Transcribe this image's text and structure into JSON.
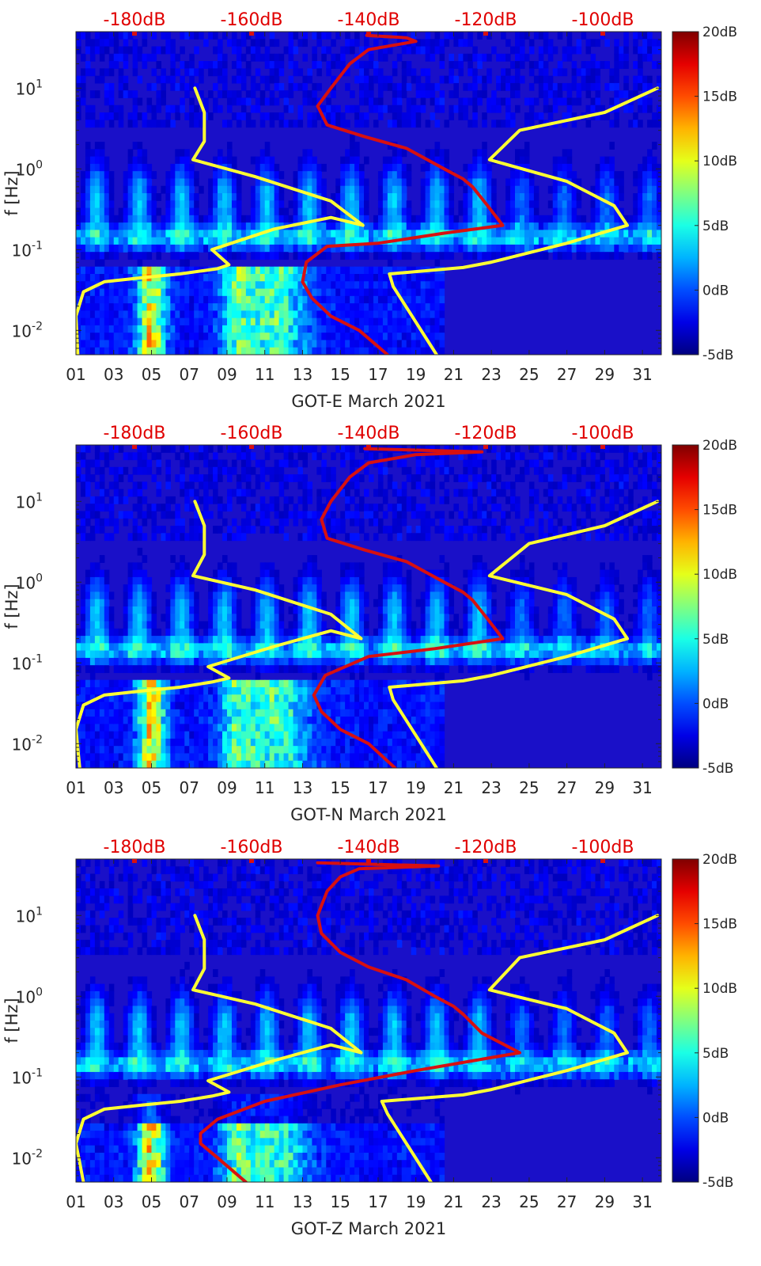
{
  "colors": {
    "yellow_curve": "#ffff33",
    "red_curve": "#d81010",
    "top_label": "#e00000",
    "background": "#1a10c8"
  },
  "colorbar": {
    "colormap": "jet",
    "min": -5,
    "max": 20,
    "labels": [
      "20dB",
      "15dB",
      "10dB",
      "5dB",
      "0dB",
      "-5dB"
    ]
  },
  "chart_data": [
    {
      "type": "heatmap",
      "xlabel": "GOT-E March 2021",
      "ylabel": "f [Hz]",
      "x_ticks": [
        "01",
        "03",
        "05",
        "07",
        "09",
        "11",
        "13",
        "15",
        "17",
        "19",
        "21",
        "23",
        "25",
        "27",
        "29",
        "31"
      ],
      "y_ticks": [
        "10^{-2}",
        "10^{-1}",
        "10^{0}",
        "10^{1}"
      ],
      "xlim": [
        1,
        32
      ],
      "ylim": [
        0.005,
        50
      ],
      "yscale": "log",
      "top_axis_labels": [
        "-180dB",
        "-160dB",
        "-140dB",
        "-120dB",
        "-100dB"
      ],
      "top_axis_range_db": [
        -190,
        -90
      ],
      "series": [
        {
          "name": "",
          "color": "yellow",
          "x": [
            1.1,
            1.0,
            1.4,
            2.5,
            4.5,
            6.5,
            8.5,
            9.1,
            8.2,
            11.5,
            14.5,
            16.2,
            14.5,
            10.5,
            7.2,
            7.8,
            7.8,
            7.3
          ],
          "y": [
            0.005,
            0.015,
            0.03,
            0.04,
            0.045,
            0.05,
            0.058,
            0.065,
            0.1,
            0.18,
            0.25,
            0.2,
            0.4,
            0.8,
            1.3,
            2.2,
            5,
            10
          ]
        },
        {
          "name": "",
          "color": "yellow",
          "x": [
            20.1,
            17.8,
            17.6,
            21.5,
            23,
            27,
            30.2,
            29.5,
            27,
            22.9,
            24.5,
            29,
            31.8
          ],
          "y": [
            0.005,
            0.035,
            0.05,
            0.06,
            0.07,
            0.12,
            0.2,
            0.35,
            0.7,
            1.3,
            3,
            5,
            10
          ]
        },
        {
          "name": "",
          "color": "red",
          "x": [
            17.5,
            16,
            14.5,
            13.5,
            13,
            13.2,
            14.3,
            17,
            20.5,
            23.6,
            22.8,
            22,
            21.5,
            20.5,
            18.5,
            16.3,
            14.3,
            13.8,
            14.5,
            15.5,
            16.5,
            19,
            18.5,
            16.4
          ],
          "y": [
            0.005,
            0.01,
            0.015,
            0.025,
            0.04,
            0.07,
            0.11,
            0.12,
            0.16,
            0.2,
            0.35,
            0.6,
            0.75,
            1,
            1.8,
            2.5,
            3.5,
            6,
            10,
            20,
            30,
            38,
            42,
            45
          ]
        }
      ]
    },
    {
      "type": "heatmap",
      "xlabel": "GOT-N March 2021",
      "ylabel": "f [Hz]",
      "x_ticks": [
        "01",
        "03",
        "05",
        "07",
        "09",
        "11",
        "13",
        "15",
        "17",
        "19",
        "21",
        "23",
        "25",
        "27",
        "29",
        "31"
      ],
      "y_ticks": [
        "10^{-2}",
        "10^{-1}",
        "10^{0}",
        "10^{1}"
      ],
      "xlim": [
        1,
        32
      ],
      "ylim": [
        0.005,
        50
      ],
      "yscale": "log",
      "top_axis_labels": [
        "-180dB",
        "-160dB",
        "-140dB",
        "-120dB",
        "-100dB"
      ],
      "top_axis_range_db": [
        -190,
        -90
      ],
      "series": [
        {
          "name": "",
          "color": "yellow",
          "x": [
            1.2,
            1.0,
            1.4,
            2.5,
            4.5,
            6.5,
            8.2,
            9.1,
            8.0,
            11.5,
            14.5,
            16.1,
            14.5,
            10.5,
            7.2,
            7.8,
            7.8,
            7.3
          ],
          "y": [
            0.005,
            0.015,
            0.03,
            0.04,
            0.045,
            0.05,
            0.058,
            0.065,
            0.09,
            0.16,
            0.25,
            0.2,
            0.4,
            0.8,
            1.2,
            2.2,
            5,
            10
          ]
        },
        {
          "name": "",
          "color": "yellow",
          "x": [
            20.1,
            17.8,
            17.6,
            21.5,
            23,
            27,
            30.2,
            29.5,
            27,
            22.9,
            25,
            29,
            31.8
          ],
          "y": [
            0.005,
            0.035,
            0.05,
            0.06,
            0.07,
            0.12,
            0.2,
            0.35,
            0.7,
            1.2,
            3,
            5,
            10
          ]
        },
        {
          "name": "",
          "color": "red",
          "x": [
            17.9,
            16.5,
            15,
            14,
            13.6,
            14.2,
            16.5,
            20,
            23.6,
            22.8,
            22,
            21.5,
            20.5,
            18.5,
            16.3,
            14.3,
            14,
            14.5,
            15.5,
            16.5,
            19,
            22.5,
            16.3
          ],
          "y": [
            0.005,
            0.01,
            0.015,
            0.025,
            0.04,
            0.07,
            0.12,
            0.15,
            0.2,
            0.35,
            0.6,
            0.75,
            1,
            1.8,
            2.5,
            3.5,
            6,
            10,
            20,
            30,
            38,
            41,
            45
          ]
        }
      ]
    },
    {
      "type": "heatmap",
      "xlabel": "GOT-Z March 2021",
      "ylabel": "f [Hz]",
      "x_ticks": [
        "01",
        "03",
        "05",
        "07",
        "09",
        "11",
        "13",
        "15",
        "17",
        "19",
        "21",
        "23",
        "25",
        "27",
        "29",
        "31"
      ],
      "y_ticks": [
        "10^{-2}",
        "10^{-1}",
        "10^{0}",
        "10^{1}"
      ],
      "xlim": [
        1,
        32
      ],
      "ylim": [
        0.005,
        50
      ],
      "yscale": "log",
      "top_axis_labels": [
        "-180dB",
        "-160dB",
        "-140dB",
        "-120dB",
        "-100dB"
      ],
      "top_axis_range_db": [
        -190,
        -90
      ],
      "series": [
        {
          "name": "",
          "color": "yellow",
          "x": [
            1.4,
            1.0,
            1.4,
            2.5,
            4.5,
            6.5,
            8.2,
            9.1,
            8.0,
            11.5,
            14.5,
            16.1,
            14.5,
            10.5,
            7.2,
            7.8,
            7.8,
            7.3
          ],
          "y": [
            0.005,
            0.015,
            0.03,
            0.04,
            0.045,
            0.05,
            0.058,
            0.065,
            0.09,
            0.16,
            0.25,
            0.2,
            0.4,
            0.8,
            1.2,
            2.2,
            5,
            10
          ]
        },
        {
          "name": "",
          "color": "yellow",
          "x": [
            19.8,
            17.5,
            17.2,
            21.5,
            23,
            27,
            30.2,
            29.5,
            27,
            22.9,
            24.5,
            29,
            31.8
          ],
          "y": [
            0.005,
            0.035,
            0.05,
            0.06,
            0.07,
            0.12,
            0.2,
            0.35,
            0.7,
            1.2,
            3,
            5,
            10
          ]
        },
        {
          "name": "",
          "color": "red",
          "x": [
            10,
            8.5,
            7.6,
            7.6,
            8.5,
            11,
            15,
            19,
            24.5,
            22.5,
            21.5,
            21,
            20,
            18.5,
            16.5,
            15,
            14,
            13.8,
            14.3,
            15,
            16,
            20.2,
            13.8
          ],
          "y": [
            0.005,
            0.01,
            0.015,
            0.02,
            0.03,
            0.05,
            0.08,
            0.12,
            0.2,
            0.35,
            0.6,
            0.75,
            1,
            1.6,
            2.3,
            3.5,
            6,
            10,
            20,
            30,
            38,
            41,
            45
          ]
        }
      ]
    }
  ]
}
